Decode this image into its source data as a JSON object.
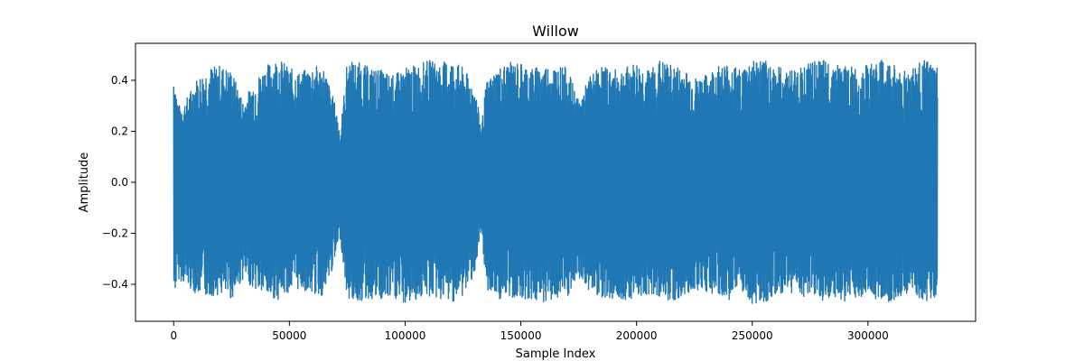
{
  "chart_data": {
    "type": "line",
    "title": "Willow",
    "xlabel": "Sample Index",
    "ylabel": "Amplitude",
    "xlim": [
      -16500,
      346500
    ],
    "ylim": [
      -0.545,
      0.545
    ],
    "x_ticks": [
      0,
      50000,
      100000,
      150000,
      200000,
      250000,
      300000
    ],
    "x_tick_labels": [
      "0",
      "50000",
      "100000",
      "150000",
      "200000",
      "250000",
      "300000"
    ],
    "y_ticks": [
      -0.4,
      -0.2,
      0.0,
      0.2,
      0.4
    ],
    "y_tick_labels": [
      "−0.4",
      "−0.2",
      "0.0",
      "0.2",
      "0.4"
    ],
    "grid": false,
    "legend": "none",
    "series": [
      {
        "color": "#1f77b4",
        "x_start": 0,
        "x_end": 330000,
        "envelope_x": [
          0,
          2000,
          5000,
          10000,
          15000,
          20000,
          25000,
          30000,
          35000,
          40000,
          45000,
          50000,
          55000,
          60000,
          65000,
          70000,
          72000,
          75000,
          80000,
          85000,
          90000,
          95000,
          100000,
          105000,
          110000,
          115000,
          120000,
          125000,
          130000,
          133000,
          135000,
          140000,
          145000,
          150000,
          155000,
          160000,
          165000,
          170000,
          175000,
          180000,
          185000,
          190000,
          195000,
          200000,
          205000,
          210000,
          215000,
          220000,
          225000,
          230000,
          235000,
          240000,
          245000,
          250000,
          255000,
          260000,
          265000,
          270000,
          275000,
          280000,
          285000,
          290000,
          295000,
          300000,
          305000,
          310000,
          315000,
          320000,
          325000,
          330000
        ],
        "envelope_max": [
          0.45,
          0.3,
          0.32,
          0.41,
          0.45,
          0.46,
          0.44,
          0.32,
          0.4,
          0.46,
          0.49,
          0.45,
          0.43,
          0.46,
          0.45,
          0.3,
          0.2,
          0.48,
          0.47,
          0.45,
          0.44,
          0.42,
          0.45,
          0.46,
          0.48,
          0.47,
          0.48,
          0.45,
          0.38,
          0.22,
          0.39,
          0.45,
          0.47,
          0.47,
          0.45,
          0.46,
          0.46,
          0.45,
          0.32,
          0.42,
          0.46,
          0.44,
          0.45,
          0.47,
          0.44,
          0.48,
          0.46,
          0.45,
          0.41,
          0.42,
          0.46,
          0.47,
          0.44,
          0.49,
          0.48,
          0.46,
          0.44,
          0.45,
          0.47,
          0.48,
          0.47,
          0.46,
          0.45,
          0.46,
          0.48,
          0.47,
          0.44,
          0.46,
          0.48,
          0.45
        ],
        "envelope_min": [
          -0.45,
          -0.38,
          -0.4,
          -0.44,
          -0.45,
          -0.44,
          -0.46,
          -0.38,
          -0.42,
          -0.45,
          -0.46,
          -0.43,
          -0.42,
          -0.44,
          -0.45,
          -0.3,
          -0.22,
          -0.46,
          -0.47,
          -0.46,
          -0.47,
          -0.46,
          -0.48,
          -0.46,
          -0.45,
          -0.46,
          -0.47,
          -0.45,
          -0.36,
          -0.22,
          -0.42,
          -0.46,
          -0.46,
          -0.45,
          -0.47,
          -0.47,
          -0.46,
          -0.46,
          -0.38,
          -0.43,
          -0.45,
          -0.46,
          -0.46,
          -0.45,
          -0.44,
          -0.45,
          -0.47,
          -0.46,
          -0.42,
          -0.43,
          -0.45,
          -0.46,
          -0.44,
          -0.48,
          -0.47,
          -0.46,
          -0.43,
          -0.44,
          -0.46,
          -0.47,
          -0.46,
          -0.47,
          -0.45,
          -0.45,
          -0.46,
          -0.47,
          -0.44,
          -0.46,
          -0.47,
          -0.45
        ]
      }
    ]
  }
}
